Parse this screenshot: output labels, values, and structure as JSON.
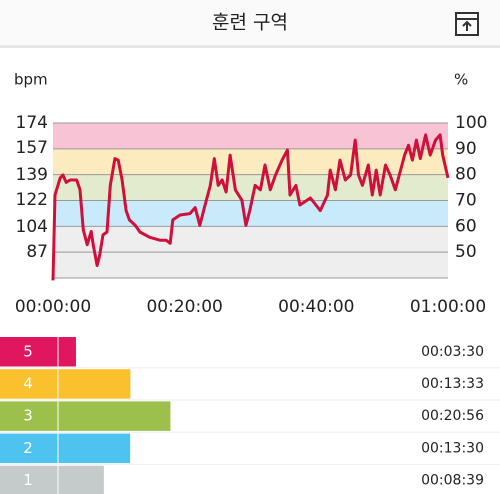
{
  "header": {
    "title": "훈련 구역"
  },
  "chart_data": {
    "type": "line",
    "y_label": "bpm",
    "y2_label": "%",
    "color": "#d0103a",
    "x": [
      0,
      0.3,
      1.1,
      1.5,
      2.0,
      2.6,
      3.6,
      4.1,
      4.6,
      5.2,
      5.8,
      6.1,
      6.7,
      7.1,
      7.6,
      8.2,
      8.7,
      9.4,
      9.9,
      10.5,
      11.1,
      11.6,
      12.5,
      13.2,
      14.7,
      16.3,
      17.2,
      17.8,
      18.2,
      19.3,
      20.8,
      21.6,
      22.3,
      23.1,
      23.9,
      24.5,
      25.1,
      25.7,
      26.3,
      26.9,
      27.7,
      28.7,
      29.3,
      29.9,
      30.7,
      31.5,
      32.2,
      33.0,
      33.8,
      34.8,
      35.6,
      36.0,
      36.9,
      37.5,
      39.1,
      40.6,
      41.7,
      42.1,
      42.9,
      43.6,
      44.4,
      45.2,
      45.9,
      46.4,
      47.0,
      47.9,
      48.5,
      49.1,
      49.7,
      50.5,
      51.2,
      52.0,
      52.8,
      53.4,
      54.0,
      54.6,
      55.2,
      55.8,
      56.6,
      57.3,
      58.1,
      58.8,
      59.2,
      60
    ],
    "values": [
      68,
      125.5,
      137,
      139,
      134,
      135.6,
      135.6,
      129,
      102,
      92,
      101,
      92,
      78,
      85,
      98.6,
      100.6,
      132,
      150,
      149,
      135.6,
      115,
      108.7,
      105,
      100.6,
      97,
      95,
      95,
      93,
      108.7,
      112,
      113,
      117,
      105,
      118.8,
      132,
      150,
      132,
      135.6,
      127.5,
      152.4,
      128.9,
      122,
      105,
      115,
      132,
      129,
      145.7,
      129,
      139,
      149,
      155.8,
      125.5,
      132,
      118.8,
      123.5,
      115,
      125.5,
      142.3,
      129,
      149,
      135.6,
      139,
      162.5,
      139,
      132,
      145.7,
      125.5,
      142.3,
      125.5,
      145.7,
      139,
      129,
      142.3,
      152.4,
      159,
      149,
      162.5,
      150,
      166,
      152.4,
      162.5,
      166,
      152.4,
      137
    ],
    "xlim": [
      0,
      60
    ],
    "xticks": [
      {
        "value": 0,
        "label": "00:00:00"
      },
      {
        "value": 20,
        "label": "00:20:00"
      },
      {
        "value": 40,
        "label": "00:40:00"
      },
      {
        "value": 60,
        "label": "01:00:00"
      }
    ],
    "ylim": [
      69.6,
      174
    ],
    "yticks": [
      87,
      104,
      122,
      139,
      157,
      174
    ],
    "y2lim": [
      40,
      100
    ],
    "y2ticks": [
      50,
      60,
      70,
      80,
      90,
      100
    ],
    "bands": [
      {
        "from": 90,
        "to": 100,
        "color": "#f7c3d5"
      },
      {
        "from": 80,
        "to": 90,
        "color": "#fdebc0"
      },
      {
        "from": 70,
        "to": 80,
        "color": "#e3ebce"
      },
      {
        "from": 60,
        "to": 70,
        "color": "#c8eafa"
      },
      {
        "from": 40,
        "to": 60,
        "color": "#eeeeee"
      }
    ],
    "grid": true
  },
  "zones": [
    {
      "label": "5",
      "time": "00:03:30",
      "color": "#e0175f"
    },
    {
      "label": "4",
      "time": "00:13:33",
      "color": "#fbc02d"
    },
    {
      "label": "3",
      "time": "00:20:56",
      "color": "#9dc04d"
    },
    {
      "label": "2",
      "time": "00:13:30",
      "color": "#4fc3f0"
    },
    {
      "label": "1",
      "time": "00:08:39",
      "color": "#c5caca"
    }
  ]
}
